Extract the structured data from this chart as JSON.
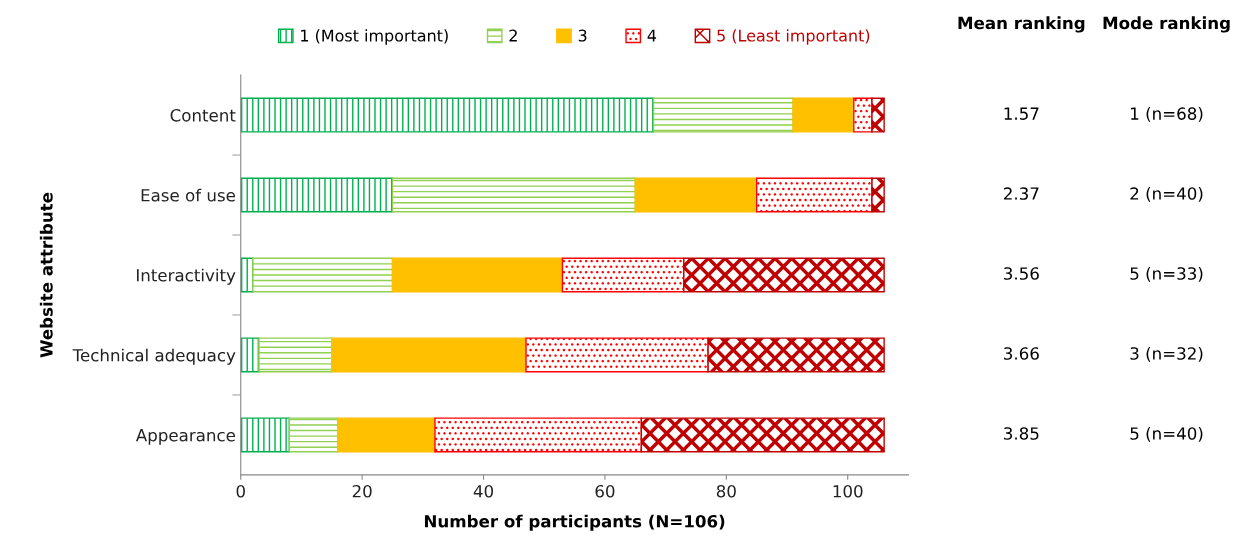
{
  "chart_data": {
    "type": "bar",
    "orientation": "horizontal",
    "stacked": true,
    "categories": [
      "Content",
      "Ease of use",
      "Interactivity",
      "Technical adequacy",
      "Appearance"
    ],
    "series": [
      {
        "name": "1 (Most important)",
        "color": "#00b050",
        "values": [
          68,
          25,
          2,
          3,
          8
        ]
      },
      {
        "name": "2",
        "color": "#92d050",
        "values": [
          23,
          40,
          23,
          12,
          8
        ]
      },
      {
        "name": "3",
        "color": "#ffc000",
        "values": [
          10,
          20,
          28,
          32,
          16
        ]
      },
      {
        "name": "4",
        "color": "#ff0000",
        "values": [
          3,
          19,
          20,
          30,
          34
        ]
      },
      {
        "name": "5 (Least important)",
        "color": "#c00000",
        "values": [
          2,
          2,
          33,
          29,
          40
        ]
      }
    ],
    "xlim": [
      0,
      110
    ],
    "xticks": [
      0,
      20,
      40,
      60,
      80,
      100
    ],
    "xlabel": "Number of participants (N=106)",
    "ylabel": "Website attribute",
    "legend": "top",
    "grid": false,
    "annotations": [
      "Mean ranking",
      "Mode ranking",
      "1.57",
      "1 (n=68)",
      "2.37",
      "2 (n=40)",
      "3.56",
      "5 (n=33)",
      "3.66",
      "3 (n=32)",
      "3.85",
      "5 (n=40)"
    ]
  }
}
